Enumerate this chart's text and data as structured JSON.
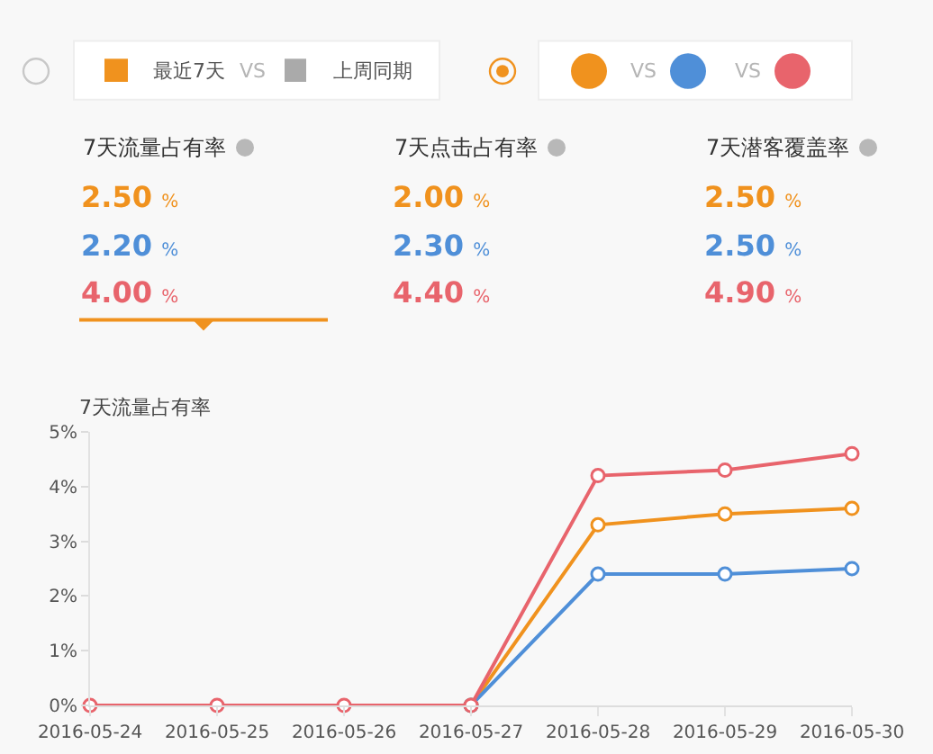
{
  "chart_data": [
    {
      "type": "other",
      "annotations": [
        "最近7天",
        "VS",
        "上周同期",
        "VS",
        "VS",
        "7天流量占有率",
        "2.50 %",
        "2.20 %",
        "4.00 %",
        "7天点击占有率",
        "2.00 %",
        "2.30 %",
        "4.40 %",
        "7天潜客覆盖率",
        "2.50 %",
        "2.50 %",
        "4.90 %"
      ]
    },
    {
      "type": "line",
      "ylabel": "7天流量占有率",
      "categories": [
        "2016-05-24",
        "2016-05-25",
        "2016-05-26",
        "2016-05-27",
        "2016-05-28",
        "2016-05-29",
        "2016-05-30"
      ],
      "series": [
        {
          "color": "#f0921e",
          "values": [
            null,
            null,
            null,
            0,
            3.3,
            3.5,
            3.6
          ]
        },
        {
          "color": "#4f8fd8",
          "values": [
            null,
            null,
            null,
            0,
            2.4,
            2.4,
            2.5
          ]
        },
        {
          "color": "#e8646c",
          "values": [
            0,
            0,
            0,
            0,
            4.2,
            4.3,
            4.6
          ]
        }
      ],
      "ylim": [
        0,
        5
      ],
      "yticks": [
        {
          "value": 0,
          "label": "0%"
        },
        {
          "value": 1,
          "label": "1%"
        },
        {
          "value": 2,
          "label": "2%"
        },
        {
          "value": 3,
          "label": "3%"
        },
        {
          "value": 4,
          "label": "4%"
        },
        {
          "value": 5,
          "label": "5%"
        }
      ],
      "grid": false,
      "legend": false,
      "marker": "circle",
      "line_style": "solid"
    }
  ]
}
